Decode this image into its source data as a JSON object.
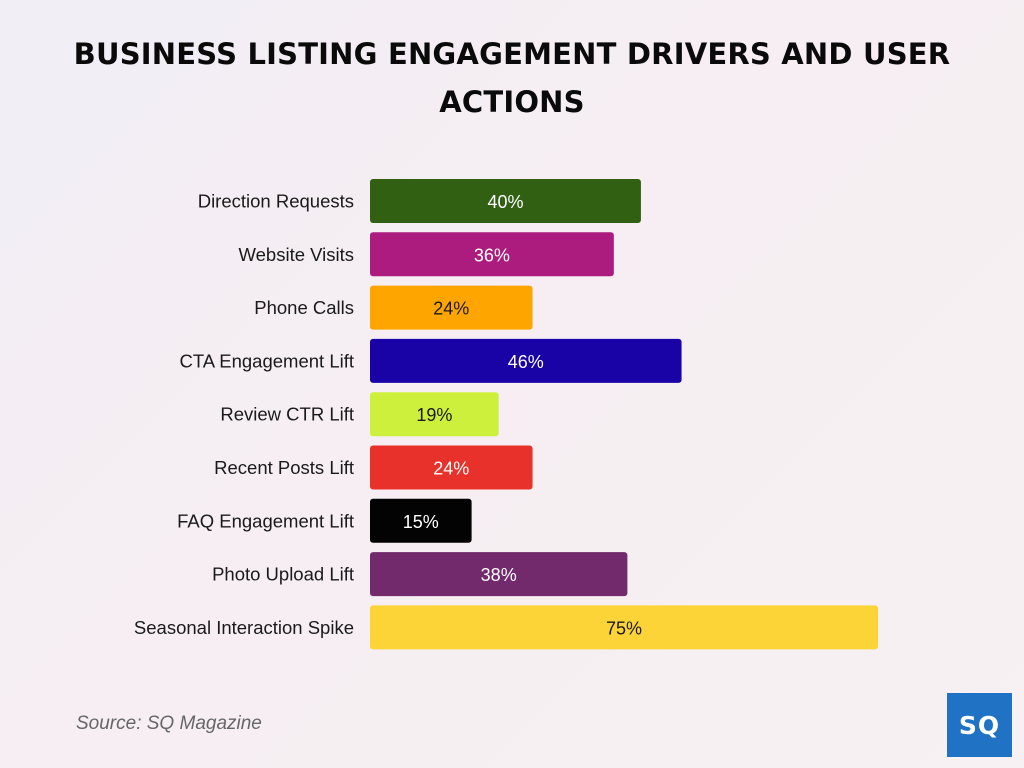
{
  "title": "BUSINESS LISTING ENGAGEMENT DRIVERS AND USER ACTIONS",
  "source": "Source: SQ Magazine",
  "logo_text": "SQ",
  "logo_color": "#1f72c4",
  "chart_data": {
    "type": "bar",
    "orientation": "horizontal",
    "title": "BUSINESS LISTING ENGAGEMENT DRIVERS AND USER ACTIONS",
    "categories": [
      "Direction Requests",
      "Website Visits",
      "Phone Calls",
      "CTA Engagement Lift",
      "Review CTR Lift",
      "Recent Posts Lift",
      "FAQ Engagement Lift",
      "Photo Upload Lift",
      "Seasonal Interaction Spike"
    ],
    "values": [
      40,
      36,
      24,
      46,
      19,
      24,
      15,
      38,
      75
    ],
    "value_labels": [
      "40%",
      "36%",
      "24%",
      "46%",
      "19%",
      "24%",
      "15%",
      "38%",
      "75%"
    ],
    "colors": [
      "#316012",
      "#ac1b7e",
      "#ffa500",
      "#1a03a6",
      "#cdf03c",
      "#e8312a",
      "#030303",
      "#722a6c",
      "#fdd437"
    ],
    "label_colors": [
      "#ffffff",
      "#ffffff",
      "#1a1a1a",
      "#ffffff",
      "#1a1a1a",
      "#ffffff",
      "#ffffff",
      "#ffffff",
      "#1a1a1a"
    ],
    "xlim": [
      0,
      75
    ],
    "grid": false,
    "legend": "none"
  }
}
